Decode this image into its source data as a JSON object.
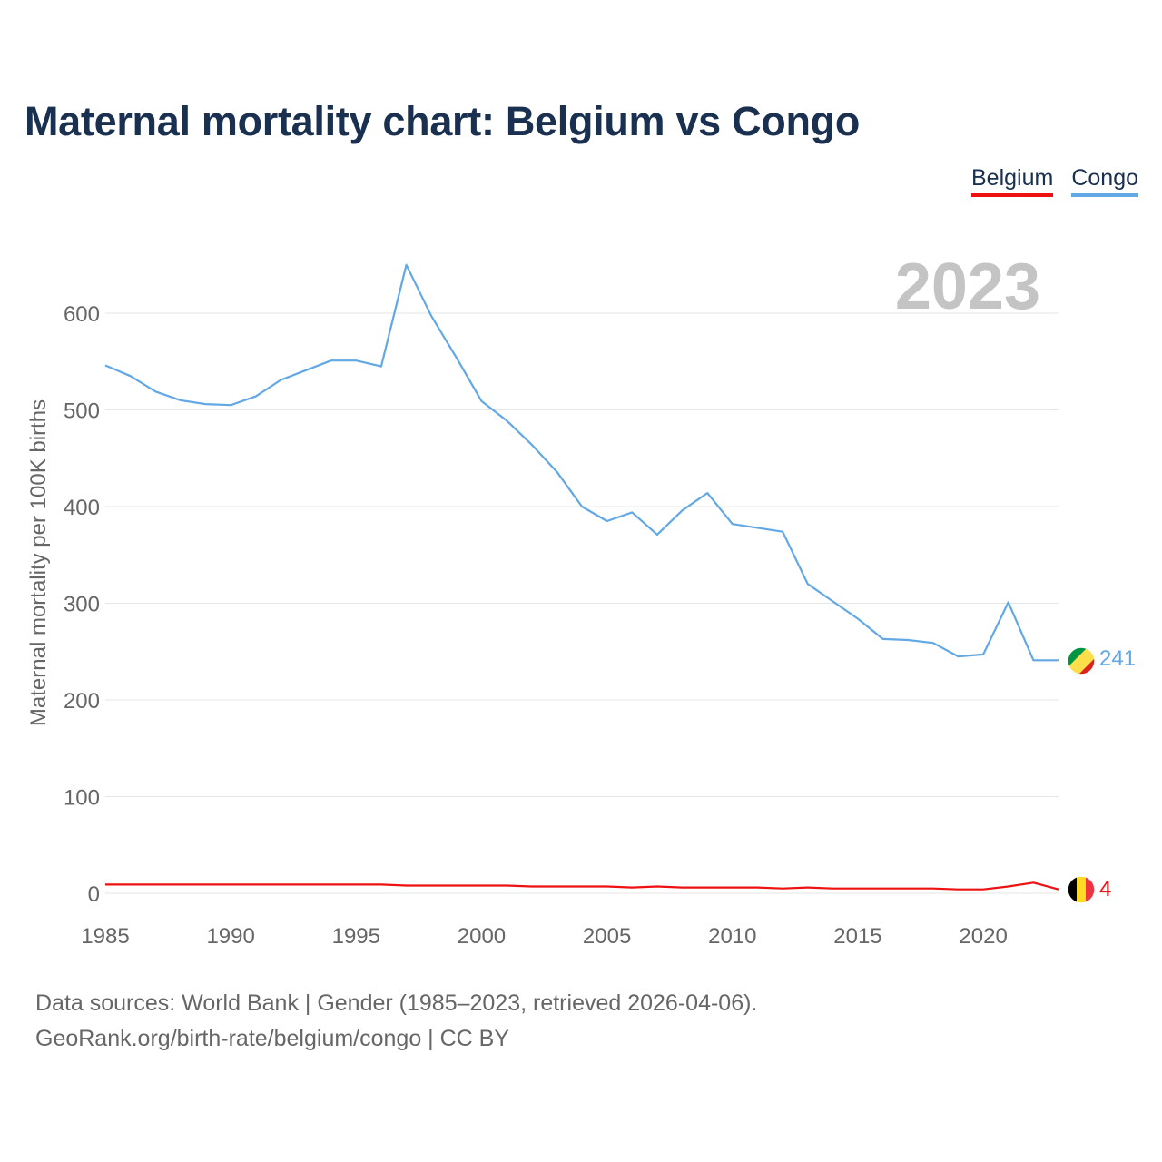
{
  "title": "Maternal mortality chart: Belgium vs Congo",
  "legend": [
    {
      "name": "Belgium",
      "color": "#ee1111"
    },
    {
      "name": "Congo",
      "color": "#62a8e5"
    }
  ],
  "year_watermark": "2023",
  "sources": {
    "line1": "Data sources: World Bank | Gender (1985–2023, retrieved 2026-04-06).",
    "line2": "GeoRank.org/birth-rate/belgium/congo | CC BY"
  },
  "chart_data": {
    "type": "line",
    "title": "Maternal mortality chart: Belgium vs Congo",
    "xlabel": "",
    "ylabel": "Maternal mortality per 100K births",
    "xlim": [
      1985,
      2023
    ],
    "ylim": [
      0,
      680
    ],
    "xticks": [
      1985,
      1990,
      1995,
      2000,
      2005,
      2010,
      2015,
      2020
    ],
    "yticks": [
      0,
      100,
      200,
      300,
      400,
      500,
      600
    ],
    "x": [
      1985,
      1986,
      1987,
      1988,
      1989,
      1990,
      1991,
      1992,
      1993,
      1994,
      1995,
      1996,
      1997,
      1998,
      1999,
      2000,
      2001,
      2002,
      2003,
      2004,
      2005,
      2006,
      2007,
      2008,
      2009,
      2010,
      2011,
      2012,
      2013,
      2014,
      2015,
      2016,
      2017,
      2018,
      2019,
      2020,
      2021,
      2022,
      2023
    ],
    "series": [
      {
        "name": "Congo",
        "color": "#62a8e5",
        "end_label": "241",
        "values": [
          546,
          535,
          519,
          510,
          506,
          505,
          514,
          531,
          541,
          551,
          551,
          545,
          650,
          597,
          554,
          509,
          489,
          464,
          436,
          400,
          385,
          394,
          371,
          396,
          414,
          382,
          378,
          374,
          320,
          302,
          284,
          263,
          262,
          259,
          245,
          247,
          301,
          241,
          241
        ]
      },
      {
        "name": "Belgium",
        "color": "#ee1111",
        "end_label": "4",
        "values": [
          9,
          9,
          9,
          9,
          9,
          9,
          9,
          9,
          9,
          9,
          9,
          9,
          8,
          8,
          8,
          8,
          8,
          7,
          7,
          7,
          7,
          6,
          7,
          6,
          6,
          6,
          6,
          5,
          6,
          5,
          5,
          5,
          5,
          5,
          4,
          4,
          7,
          11,
          4
        ]
      }
    ]
  }
}
